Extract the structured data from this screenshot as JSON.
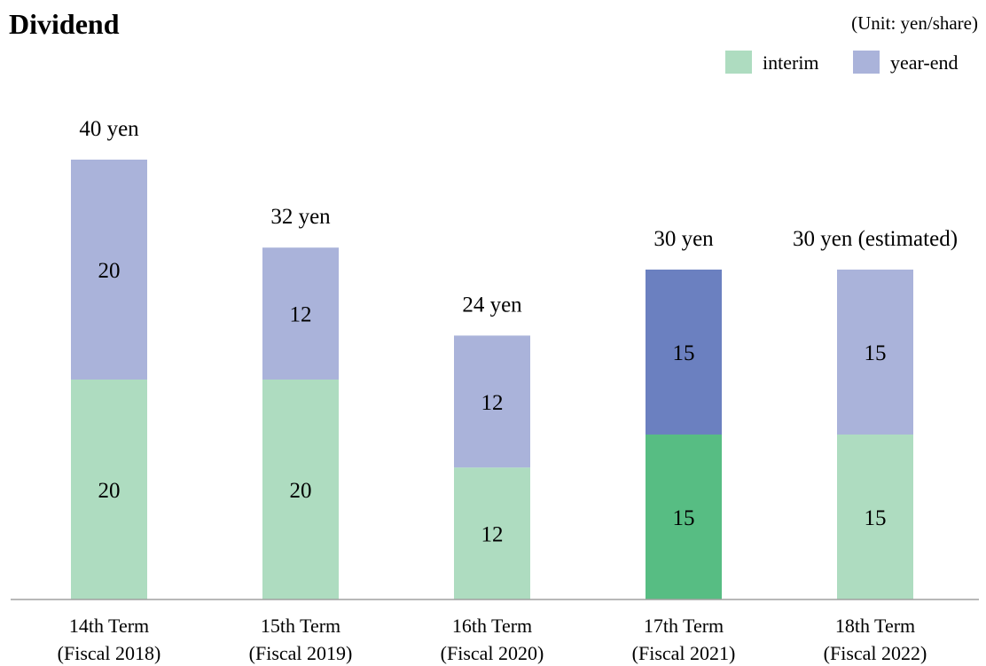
{
  "chart_data": {
    "type": "bar",
    "stacked": true,
    "title": "Dividend",
    "unit_note": "(Unit: yen/share)",
    "categories": [
      [
        "14th Term",
        "(Fiscal 2018)"
      ],
      [
        "15th Term",
        "(Fiscal 2019)"
      ],
      [
        "16th Term",
        "(Fiscal 2020)"
      ],
      [
        "17th Term",
        "(Fiscal 2021)"
      ],
      [
        "18th Term",
        "(Fiscal 2022)"
      ]
    ],
    "series": [
      {
        "name": "interim",
        "values": [
          20,
          20,
          12,
          15,
          15
        ],
        "colors": [
          "#aedcc0",
          "#aedcc0",
          "#aedcc0",
          "#57bd83",
          "#aedcc0"
        ]
      },
      {
        "name": "year-end",
        "values": [
          20,
          12,
          12,
          15,
          15
        ],
        "colors": [
          "#aab3da",
          "#aab3da",
          "#aab3da",
          "#6b80c0",
          "#aab3da"
        ]
      }
    ],
    "totals_labels": [
      "40 yen",
      "32 yen",
      "24 yen",
      "30 yen",
      "30 yen (estimated)"
    ],
    "legend": {
      "position": "top-right",
      "items": [
        {
          "label": "interim",
          "color": "#aedcc0"
        },
        {
          "label": "year-end",
          "color": "#aab3da"
        }
      ]
    },
    "ylim": [
      0,
      40
    ],
    "grid": false,
    "xlabel": "",
    "ylabel": ""
  }
}
